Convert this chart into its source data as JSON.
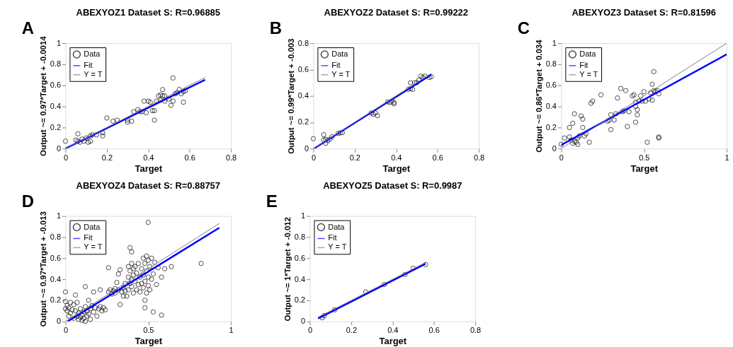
{
  "chart_data": [
    {
      "type": "scatter",
      "title": "ABEXYOZ1 Dataset S: R=0.96885",
      "xlabel": "Target",
      "ylabel": "Output ~= 0.97*Target + -0.0014",
      "annotations": [
        "A"
      ],
      "xlim": [
        0,
        0.8
      ],
      "ylim": [
        0,
        1
      ],
      "xticks": [
        0,
        0.2,
        0.4,
        0.6,
        0.8
      ],
      "yticks": [
        0,
        0.2,
        0.4,
        0.6,
        0.8,
        1
      ],
      "grid": false,
      "legend": "top left",
      "series": [
        {
          "name": "Data",
          "type": "scatter",
          "marker": "circle",
          "color": "#000000",
          "x": [
            0.0,
            0.05,
            0.06,
            0.06,
            0.07,
            0.08,
            0.09,
            0.1,
            0.11,
            0.12,
            0.13,
            0.12,
            0.15,
            0.18,
            0.18,
            0.2,
            0.23,
            0.25,
            0.3,
            0.3,
            0.32,
            0.33,
            0.35,
            0.36,
            0.37,
            0.39,
            0.38,
            0.4,
            0.41,
            0.42,
            0.43,
            0.43,
            0.44,
            0.45,
            0.46,
            0.46,
            0.47,
            0.47,
            0.48,
            0.48,
            0.5,
            0.51,
            0.52,
            0.52,
            0.53,
            0.54,
            0.55,
            0.56,
            0.57,
            0.57,
            0.58
          ],
          "values": [
            0.07,
            0.08,
            0.14,
            0.07,
            0.06,
            0.09,
            0.07,
            0.1,
            0.06,
            0.12,
            0.13,
            0.07,
            0.13,
            0.15,
            0.12,
            0.29,
            0.26,
            0.27,
            0.27,
            0.25,
            0.26,
            0.35,
            0.37,
            0.35,
            0.35,
            0.34,
            0.45,
            0.45,
            0.44,
            0.36,
            0.36,
            0.27,
            0.45,
            0.5,
            0.46,
            0.51,
            0.56,
            0.5,
            0.45,
            0.5,
            0.47,
            0.41,
            0.45,
            0.67,
            0.52,
            0.53,
            0.56,
            0.52,
            0.44,
            0.54,
            0.55
          ]
        },
        {
          "name": "Fit",
          "type": "line",
          "color": "#0000ff",
          "line_style": "solid",
          "x": [
            0,
            0.675
          ],
          "values": [
            0,
            0.653
          ]
        },
        {
          "name": "Y = T",
          "type": "line",
          "color": "#808080",
          "line_style": "solid",
          "x": [
            0,
            0.675
          ],
          "values": [
            0,
            0.675
          ]
        }
      ]
    },
    {
      "type": "scatter",
      "title": "ABEXYOZ2 Dataset S: R=0.99222",
      "xlabel": "Target",
      "ylabel": "Output ~= 0.99*Target + -0.003",
      "annotations": [
        "B"
      ],
      "xlim": [
        0,
        0.8
      ],
      "ylim": [
        0,
        0.8
      ],
      "xticks": [
        0,
        0.2,
        0.4,
        0.6,
        0.8
      ],
      "yticks": [
        0,
        0.2,
        0.4,
        0.6,
        0.8
      ],
      "grid": false,
      "legend": "top left",
      "series": [
        {
          "name": "Data",
          "type": "scatter",
          "marker": "circle",
          "color": "#000000",
          "x": [
            0,
            0.05,
            0.05,
            0.06,
            0.06,
            0.07,
            0.08,
            0.09,
            0.12,
            0.13,
            0.14,
            0.28,
            0.29,
            0.3,
            0.31,
            0.36,
            0.37,
            0.38,
            0.39,
            0.39,
            0.46,
            0.47,
            0.47,
            0.48,
            0.49,
            0.5,
            0.51,
            0.52,
            0.53,
            0.54,
            0.56,
            0.57
          ],
          "values": [
            0.075,
            0.105,
            0.065,
            0.04,
            0.07,
            0.06,
            0.07,
            0.09,
            0.115,
            0.12,
            0.12,
            0.27,
            0.26,
            0.27,
            0.25,
            0.355,
            0.35,
            0.36,
            0.34,
            0.35,
            0.45,
            0.455,
            0.5,
            0.45,
            0.5,
            0.5,
            0.52,
            0.55,
            0.54,
            0.55,
            0.54,
            0.545
          ]
        },
        {
          "name": "Fit",
          "type": "line",
          "color": "#0000ff",
          "line_style": "solid",
          "x": [
            0.003,
            0.57
          ],
          "values": [
            0,
            0.561
          ]
        },
        {
          "name": "Y = T",
          "type": "line",
          "color": "#808080",
          "line_style": "solid",
          "x": [
            0,
            0.57
          ],
          "values": [
            0,
            0.57
          ]
        }
      ]
    },
    {
      "type": "scatter",
      "title": "ABEXYOZ3 Dataset S: R=0.81596",
      "xlabel": "Target",
      "ylabel": "Output ~= 0.86*Target + 0.034",
      "annotations": [
        "C"
      ],
      "xlim": [
        0,
        1
      ],
      "ylim": [
        0,
        1
      ],
      "xticks": [
        0,
        0.5,
        1
      ],
      "yticks": [
        0,
        0.2,
        0.4,
        0.6,
        0.8,
        1
      ],
      "grid": false,
      "legend": "top left",
      "series": [
        {
          "name": "Data",
          "type": "scatter",
          "marker": "circle",
          "color": "#000000",
          "x": [
            0.0,
            0.02,
            0.05,
            0.05,
            0.06,
            0.07,
            0.08,
            0.07,
            0.08,
            0.09,
            0.1,
            0.1,
            0.11,
            0.12,
            0.13,
            0.13,
            0.14,
            0.15,
            0.17,
            0.18,
            0.19,
            0.24,
            0.28,
            0.29,
            0.3,
            0.3,
            0.32,
            0.33,
            0.34,
            0.36,
            0.37,
            0.38,
            0.39,
            0.4,
            0.41,
            0.43,
            0.44,
            0.45,
            0.45,
            0.45,
            0.46,
            0.46,
            0.47,
            0.48,
            0.49,
            0.5,
            0.51,
            0.52,
            0.53,
            0.54,
            0.55,
            0.55,
            0.56,
            0.56,
            0.57,
            0.58,
            0.59,
            0.59,
            0.59
          ],
          "values": [
            0.04,
            0.1,
            0.2,
            0.11,
            0.08,
            0.24,
            0.33,
            0.05,
            0.07,
            0.06,
            0.04,
            0.1,
            0.12,
            0.31,
            0.28,
            0.2,
            0.12,
            0.14,
            0.06,
            0.43,
            0.45,
            0.51,
            0.26,
            0.27,
            0.32,
            0.18,
            0.27,
            0.33,
            0.48,
            0.57,
            0.35,
            0.36,
            0.55,
            0.21,
            0.35,
            0.5,
            0.51,
            0.44,
            0.4,
            0.25,
            0.37,
            0.32,
            0.45,
            0.5,
            0.45,
            0.54,
            0.45,
            0.06,
            0.47,
            0.53,
            0.61,
            0.46,
            0.73,
            0.55,
            0.54,
            0.55,
            0.52,
            0.11,
            0.1
          ]
        },
        {
          "name": "Fit",
          "type": "line",
          "color": "#0000ff",
          "line_style": "solid",
          "x": [
            0,
            1
          ],
          "values": [
            0.034,
            0.894
          ]
        },
        {
          "name": "Y = T",
          "type": "line",
          "color": "#808080",
          "line_style": "solid",
          "x": [
            0,
            1
          ],
          "values": [
            0,
            1
          ]
        }
      ]
    },
    {
      "type": "scatter",
      "title": "ABEXYOZ4 Dataset S: R=0.88757",
      "xlabel": "Target",
      "ylabel": "Output ~= 0.97*Target + -0.013",
      "annotations": [
        "D"
      ],
      "xlim": [
        0,
        1
      ],
      "ylim": [
        0,
        1
      ],
      "xticks": [
        0,
        0.5,
        1
      ],
      "yticks": [
        0,
        0.2,
        0.4,
        0.6,
        0.8,
        1
      ],
      "grid": false,
      "legend": "top left",
      "series": [
        {
          "name": "Data",
          "type": "scatter",
          "marker": "circle",
          "color": "#000000",
          "x": [
            0,
            0,
            0,
            0.01,
            0.01,
            0.02,
            0.02,
            0.03,
            0.03,
            0.04,
            0.05,
            0.05,
            0.06,
            0.06,
            0.07,
            0.07,
            0.08,
            0.08,
            0.09,
            0.09,
            0.1,
            0.1,
            0.11,
            0.11,
            0.12,
            0.12,
            0.12,
            0.13,
            0.13,
            0.14,
            0.14,
            0.15,
            0.15,
            0.16,
            0.17,
            0.17,
            0.18,
            0.19,
            0.2,
            0.21,
            0.21,
            0.22,
            0.23,
            0.24,
            0.26,
            0.26,
            0.27,
            0.28,
            0.29,
            0.3,
            0.3,
            0.31,
            0.32,
            0.32,
            0.33,
            0.33,
            0.34,
            0.35,
            0.35,
            0.36,
            0.36,
            0.37,
            0.38,
            0.38,
            0.38,
            0.39,
            0.39,
            0.39,
            0.4,
            0.4,
            0.4,
            0.4,
            0.41,
            0.41,
            0.41,
            0.42,
            0.42,
            0.43,
            0.43,
            0.44,
            0.44,
            0.45,
            0.45,
            0.46,
            0.46,
            0.47,
            0.47,
            0.47,
            0.48,
            0.48,
            0.48,
            0.48,
            0.49,
            0.49,
            0.49,
            0.5,
            0.5,
            0.5,
            0.5,
            0.51,
            0.51,
            0.52,
            0.52,
            0.53,
            0.53,
            0.54,
            0.55,
            0.56,
            0.58,
            0.58,
            0.6,
            0.64,
            0.82
          ],
          "values": [
            0.28,
            0.19,
            0.12,
            0.1,
            0.15,
            0.05,
            0.13,
            0.18,
            0.08,
            0.11,
            0.03,
            0.16,
            0.25,
            0.1,
            0.05,
            0.18,
            0.02,
            0.08,
            0.12,
            0.04,
            0.01,
            0.06,
            0.09,
            0.03,
            0.33,
            0.14,
            0.0,
            0.05,
            0.1,
            0.2,
            0.07,
            0.12,
            0.02,
            0.15,
            0.28,
            0.09,
            0.13,
            0.05,
            0.12,
            0.3,
            0.14,
            0.1,
            0.13,
            0.11,
            0.51,
            0.28,
            0.3,
            0.26,
            0.29,
            0.31,
            0.27,
            0.37,
            0.3,
            0.45,
            0.16,
            0.49,
            0.28,
            0.32,
            0.24,
            0.36,
            0.29,
            0.24,
            0.42,
            0.52,
            0.3,
            0.7,
            0.48,
            0.36,
            0.66,
            0.55,
            0.4,
            0.33,
            0.5,
            0.44,
            0.27,
            0.38,
            0.52,
            0.3,
            0.46,
            0.35,
            0.55,
            0.42,
            0.28,
            0.5,
            0.36,
            0.6,
            0.32,
            0.44,
            0.2,
            0.13,
            0.55,
            0.38,
            0.62,
            0.27,
            0.48,
            0.94,
            0.58,
            0.34,
            0.42,
            0.3,
            0.52,
            0.4,
            0.6,
            0.09,
            0.45,
            0.56,
            0.35,
            0.51,
            0.06,
            0.42,
            0.5,
            0.52,
            0.55
          ]
        },
        {
          "name": "Fit",
          "type": "line",
          "color": "#0000ff",
          "line_style": "solid",
          "x": [
            0.013,
            0.93
          ],
          "values": [
            0,
            0.889
          ]
        },
        {
          "name": "Y = T",
          "type": "line",
          "color": "#808080",
          "line_style": "solid",
          "x": [
            0,
            0.93
          ],
          "values": [
            0,
            0.93
          ]
        }
      ]
    },
    {
      "type": "scatter",
      "title": "ABEXYOZ5 Dataset S: R=0.9987",
      "xlabel": "Target",
      "ylabel": "Output ~= 1*Target + -0.012",
      "annotations": [
        "E"
      ],
      "xlim": [
        0,
        0.8
      ],
      "ylim": [
        0,
        1
      ],
      "xticks": [
        0,
        0.2,
        0.4,
        0.6,
        0.8
      ],
      "yticks": [
        0,
        0.2,
        0.4,
        0.6,
        0.8,
        1
      ],
      "grid": false,
      "legend": "top left",
      "series": [
        {
          "name": "Data",
          "type": "scatter",
          "marker": "circle",
          "color": "#000000",
          "x": [
            0.06,
            0.07,
            0.12,
            0.27,
            0.36,
            0.46,
            0.5,
            0.56
          ],
          "values": [
            0.035,
            0.055,
            0.11,
            0.28,
            0.35,
            0.445,
            0.505,
            0.54
          ]
        },
        {
          "name": "Fit",
          "type": "line",
          "color": "#0000ff",
          "line_style": "solid",
          "x": [
            0.04,
            0.56
          ],
          "values": [
            0.028,
            0.548
          ]
        },
        {
          "name": "Y = T",
          "type": "line",
          "color": "#808080",
          "line_style": "solid",
          "x": [
            0.04,
            0.56
          ],
          "values": [
            0.04,
            0.56
          ]
        }
      ]
    }
  ]
}
